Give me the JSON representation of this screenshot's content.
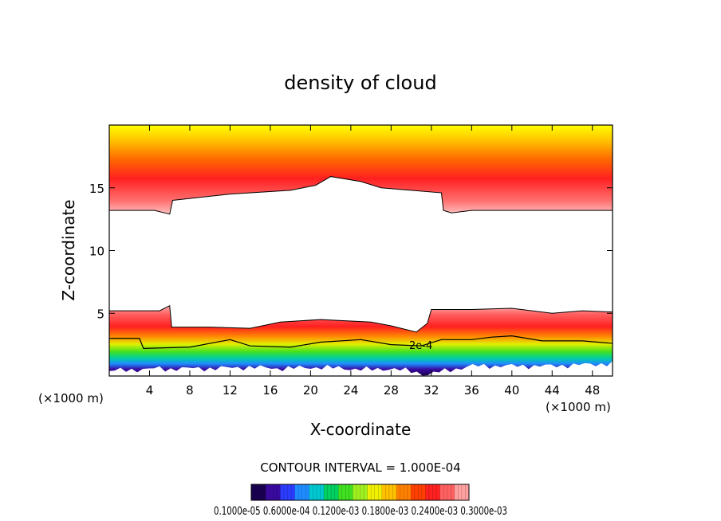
{
  "chart_data": {
    "type": "heatmap",
    "title": "density of cloud",
    "xlabel": "X-coordinate",
    "ylabel": "Z-coordinate",
    "x_unit_left": "(×1000 m)",
    "x_unit_right": "(×1000 m)",
    "xlim": [
      0,
      50
    ],
    "ylim": [
      0,
      20
    ],
    "xticks": [
      4,
      8,
      12,
      16,
      20,
      24,
      28,
      32,
      36,
      40,
      44,
      48
    ],
    "xtick_labels": [
      "4",
      "8",
      "12",
      "16",
      "20",
      "24",
      "28",
      "32",
      "36",
      "40",
      "44",
      "48"
    ],
    "yticks": [
      5,
      10,
      15
    ],
    "ytick_labels": [
      "5",
      "10",
      "15"
    ],
    "contour_label": "2e-4",
    "contour_interval_text": "CONTOUR INTERVAL = 1.000E-04",
    "colorbar_labels_text": "0.1000e-05 0.6000e-04 0.1200e-03 0.1800e-03 0.2400e-03 0.3000e-03",
    "colorbar_colors": [
      "#1a0050",
      "#3a0aa0",
      "#2b3cff",
      "#1e8cff",
      "#00c8d0",
      "#00d060",
      "#40e020",
      "#a0f020",
      "#f0f000",
      "#ffc000",
      "#ff8000",
      "#ff4000",
      "#ff2020",
      "#ff6060",
      "#ffa0a0"
    ],
    "upper_layer": [
      {
        "x": 0,
        "bottom": 13.2,
        "top": 20
      },
      {
        "x": 4.5,
        "bottom": 13.2,
        "top": 20
      },
      {
        "x": 6,
        "bottom": 12.9,
        "top": 20
      },
      {
        "x": 6.3,
        "bottom": 14.0,
        "top": 20
      },
      {
        "x": 12,
        "bottom": 14.5,
        "top": 20
      },
      {
        "x": 18,
        "bottom": 14.8,
        "top": 20
      },
      {
        "x": 20.5,
        "bottom": 15.2,
        "top": 20
      },
      {
        "x": 22,
        "bottom": 15.9,
        "top": 20
      },
      {
        "x": 25,
        "bottom": 15.5,
        "top": 20
      },
      {
        "x": 27,
        "bottom": 15.0,
        "top": 20
      },
      {
        "x": 33,
        "bottom": 14.6,
        "top": 20
      },
      {
        "x": 33.2,
        "bottom": 13.2,
        "top": 20
      },
      {
        "x": 34,
        "bottom": 13.0,
        "top": 20
      },
      {
        "x": 36,
        "bottom": 13.2,
        "top": 20
      },
      {
        "x": 50,
        "bottom": 13.2,
        "top": 20
      }
    ],
    "lower_layer": [
      {
        "x": 0,
        "bottom": 0.4,
        "top": 5.2
      },
      {
        "x": 5,
        "bottom": 0.6,
        "top": 5.2
      },
      {
        "x": 6,
        "bottom": 0.5,
        "top": 5.6
      },
      {
        "x": 6.2,
        "bottom": 0.6,
        "top": 3.9
      },
      {
        "x": 10,
        "bottom": 0.6,
        "top": 3.9
      },
      {
        "x": 14,
        "bottom": 0.7,
        "top": 3.8
      },
      {
        "x": 17,
        "bottom": 0.6,
        "top": 4.3
      },
      {
        "x": 21,
        "bottom": 0.7,
        "top": 4.5
      },
      {
        "x": 26,
        "bottom": 0.5,
        "top": 4.3
      },
      {
        "x": 28,
        "bottom": 0.6,
        "top": 4.0
      },
      {
        "x": 30.5,
        "bottom": 0.3,
        "top": 3.5
      },
      {
        "x": 31.6,
        "bottom": 0.1,
        "top": 4.2
      },
      {
        "x": 32,
        "bottom": 0.2,
        "top": 5.3
      },
      {
        "x": 36,
        "bottom": 0.8,
        "top": 5.3
      },
      {
        "x": 40,
        "bottom": 0.8,
        "top": 5.4
      },
      {
        "x": 44,
        "bottom": 0.8,
        "top": 5.0
      },
      {
        "x": 47,
        "bottom": 0.9,
        "top": 5.2
      },
      {
        "x": 50,
        "bottom": 1.0,
        "top": 5.1
      }
    ],
    "contour_2e4": [
      {
        "x": 0,
        "z": 3.0
      },
      {
        "x": 3,
        "z": 3.0
      },
      {
        "x": 3.4,
        "z": 2.2
      },
      {
        "x": 8,
        "z": 2.3
      },
      {
        "x": 12,
        "z": 2.9
      },
      {
        "x": 14,
        "z": 2.4
      },
      {
        "x": 18,
        "z": 2.3
      },
      {
        "x": 21,
        "z": 2.7
      },
      {
        "x": 25,
        "z": 2.9
      },
      {
        "x": 28,
        "z": 2.5
      },
      {
        "x": 31,
        "z": 2.4
      },
      {
        "x": 33,
        "z": 2.9
      },
      {
        "x": 36,
        "z": 2.9
      },
      {
        "x": 38,
        "z": 3.1
      },
      {
        "x": 40,
        "z": 3.2
      },
      {
        "x": 43,
        "z": 2.8
      },
      {
        "x": 47,
        "z": 2.8
      },
      {
        "x": 50,
        "z": 2.6
      }
    ]
  }
}
